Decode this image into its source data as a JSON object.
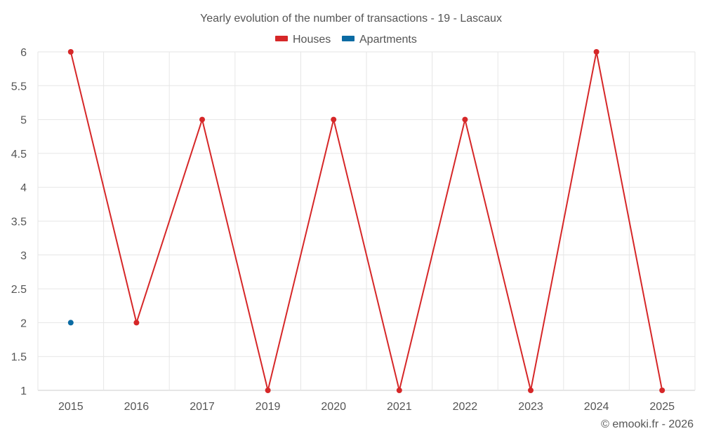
{
  "chart_data": {
    "type": "line",
    "title": "Yearly evolution of the number of transactions - 19 - Lascaux",
    "categories": [
      "2015",
      "2016",
      "2017",
      "2019",
      "2020",
      "2021",
      "2022",
      "2023",
      "2024",
      "2025"
    ],
    "series": [
      {
        "name": "Houses",
        "color": "#d62728",
        "values": [
          6,
          2,
          5,
          1,
          5,
          1,
          5,
          1,
          6,
          1
        ]
      },
      {
        "name": "Apartments",
        "color": "#0b6ba3",
        "values": [
          2,
          null,
          null,
          null,
          null,
          null,
          null,
          null,
          null,
          null
        ]
      }
    ],
    "ylim": [
      1,
      6
    ],
    "yticks": [
      "1",
      "1.5",
      "2",
      "2.5",
      "3",
      "3.5",
      "4",
      "4.5",
      "5",
      "5.5",
      "6"
    ],
    "xlabel": "",
    "ylabel": "",
    "grid": true,
    "legend": "top-center"
  },
  "credit": "© emooki.fr - 2026"
}
